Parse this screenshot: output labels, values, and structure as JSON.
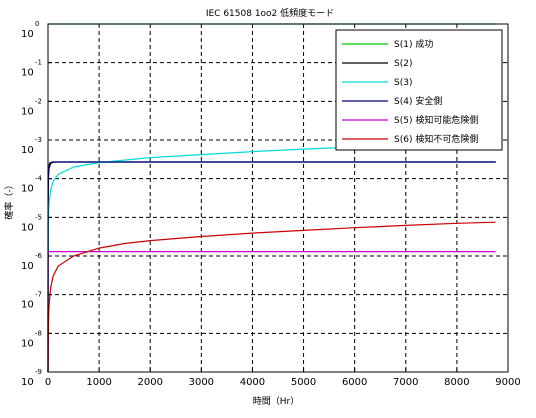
{
  "chart_data": {
    "type": "line",
    "title": "IEC 61508 1oo2 低頻度モード",
    "xlabel": "時間（Hr）",
    "ylabel": "確率（-）",
    "xlim": [
      0,
      9000
    ],
    "ylim_log10": [
      -9,
      0
    ],
    "yscale": "log",
    "grid": true,
    "legend_position": "top-right",
    "x_ticks": [
      "0",
      "1000",
      "2000",
      "3000",
      "4000",
      "5000",
      "6000",
      "7000",
      "8000",
      "9000"
    ],
    "y_tick_base": "10",
    "y_tick_exponents": [
      "-9",
      "-8",
      "-7",
      "-6",
      "-5",
      "-4",
      "-3",
      "-2",
      "-1",
      "0"
    ],
    "series": [
      {
        "name": "S(1) 成功",
        "color": "#00cc00",
        "x": [
          0,
          8760
        ],
        "y": [
          1.0,
          0.999
        ]
      },
      {
        "name": "S(2)",
        "color": "#000000",
        "x": [
          0,
          1,
          5,
          10,
          20,
          50,
          100,
          200,
          500,
          1000,
          8760
        ],
        "y": [
          1e-09,
          1.2e-05,
          6e-05,
          0.00011,
          0.00018,
          0.00025,
          0.000265,
          0.00027,
          0.00027,
          0.00027,
          0.00027
        ]
      },
      {
        "name": "S(3)",
        "color": "#00dddd",
        "x": [
          0,
          1,
          5,
          10,
          20,
          50,
          100,
          200,
          500,
          1000,
          2000,
          3000,
          4000,
          5000,
          6000,
          7000,
          8000,
          8760
        ],
        "y": [
          1e-09,
          1.3e-06,
          6.5e-06,
          1.2e-05,
          2.3e-05,
          5e-05,
          8.5e-05,
          0.00013,
          0.0002,
          0.00026,
          0.00035,
          0.00042,
          0.0005,
          0.00058,
          0.00066,
          0.00073,
          0.0008,
          0.00086
        ]
      },
      {
        "name": "S(4) 安全側",
        "color": "#000080",
        "x": [
          0,
          2,
          10,
          30,
          60,
          100,
          8760
        ],
        "y": [
          1e-09,
          4e-05,
          0.00015,
          0.00025,
          0.000265,
          0.00027,
          0.00027
        ]
      },
      {
        "name": "S(5) 検知可能危険側",
        "color": "#cc00cc",
        "x": [
          0,
          2,
          5,
          10,
          20,
          8760
        ],
        "y": [
          1e-09,
          1e-06,
          1.25e-06,
          1.3e-06,
          1.3e-06,
          1.3e-06
        ]
      },
      {
        "name": "S(6) 検知不可危険側",
        "color": "#cc0000",
        "x": [
          0,
          1,
          5,
          10,
          20,
          50,
          100,
          200,
          500,
          1000,
          1500,
          2000,
          3000,
          4000,
          5000,
          6000,
          7000,
          8000,
          8760
        ],
        "y": [
          1e-09,
          1.5e-09,
          8e-09,
          2e-08,
          5e-08,
          1.5e-07,
          3e-07,
          5.5e-07,
          1e-06,
          1.6e-06,
          2.1e-06,
          2.5e-06,
          3.2e-06,
          3.9e-06,
          4.6e-06,
          5.4e-06,
          6.2e-06,
          7e-06,
          7.5e-06
        ]
      }
    ]
  }
}
